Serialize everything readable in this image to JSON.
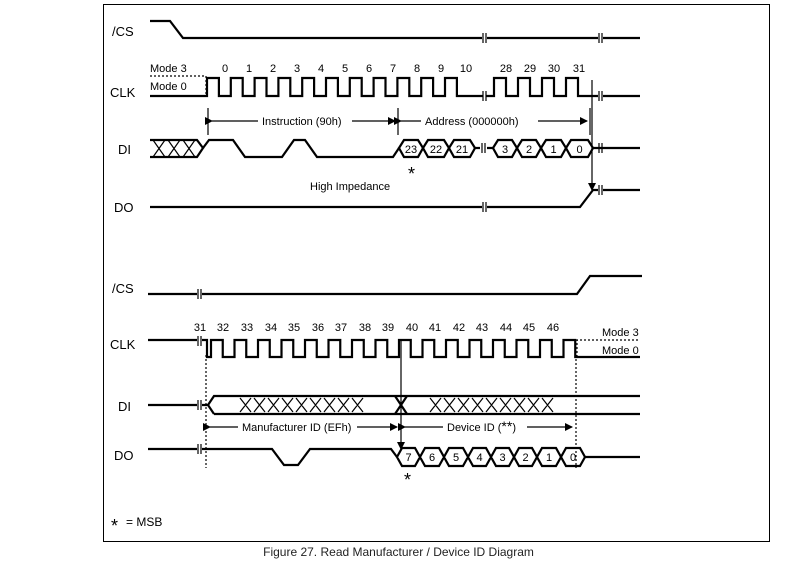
{
  "signals": {
    "cs": "/CS",
    "clk": "CLK",
    "di": "DI",
    "do": "DO"
  },
  "modes": {
    "mode3": "Mode 3",
    "mode0": "Mode 0"
  },
  "top": {
    "clock_numbers": [
      "0",
      "1",
      "2",
      "3",
      "4",
      "5",
      "6",
      "7",
      "8",
      "9",
      "10",
      "28",
      "29",
      "30",
      "31"
    ],
    "instruction_label": "Instruction (90h)",
    "address_label": "Address (000000h)",
    "address_bits": [
      "23",
      "22",
      "21",
      "3",
      "2",
      "1",
      "0"
    ],
    "high_impedance": "High Impedance",
    "msb_marker": "*"
  },
  "bottom": {
    "clock_numbers": [
      "31",
      "32",
      "33",
      "34",
      "35",
      "36",
      "37",
      "38",
      "39",
      "40",
      "41",
      "42",
      "43",
      "44",
      "45",
      "46"
    ],
    "manufacturer_label": "Manufacturer ID (EFh)",
    "device_label": "Device ID (",
    "device_label_star": "**",
    "device_label_end": ")",
    "do_bits": [
      "7",
      "6",
      "5",
      "4",
      "3",
      "2",
      "1",
      "0"
    ],
    "msb_marker": "*"
  },
  "legend": {
    "star": "*",
    "text": "= MSB"
  },
  "caption": "Figure 27. Read Manufacturer / Device ID Diagram"
}
